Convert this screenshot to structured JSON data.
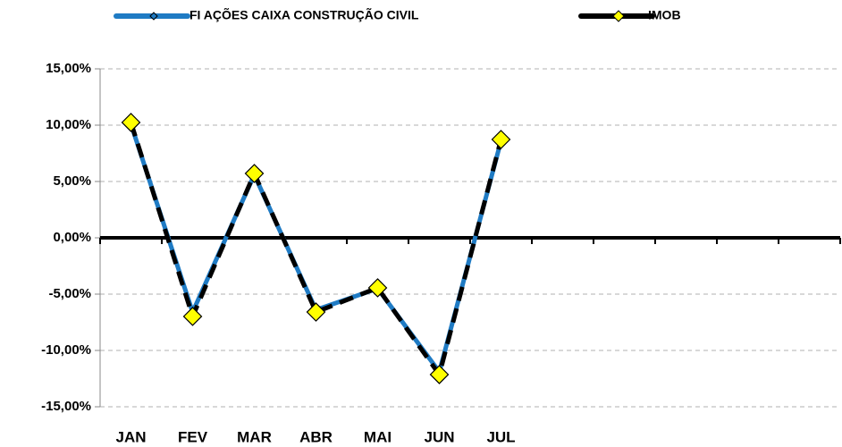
{
  "chart_data": {
    "type": "line",
    "categories": [
      "JAN",
      "FEV",
      "MAR",
      "ABR",
      "MAI",
      "JUN",
      "JUL",
      null,
      null,
      null,
      null,
      null
    ],
    "series": [
      {
        "name": "FI AÇÕES CAIXA CONSTRUÇÃO CIVIL",
        "color": "#1f7bc4",
        "values": [
          10.1,
          -6.6,
          5.6,
          -6.4,
          -4.5,
          -11.9,
          8.6,
          null,
          null,
          null,
          null,
          null
        ]
      },
      {
        "name": "IMOB",
        "color": "#000000",
        "values": [
          10.24,
          -6.98,
          5.71,
          -6.59,
          -4.44,
          -12.14,
          8.73,
          null,
          null,
          null,
          null,
          null
        ]
      }
    ],
    "ylim": [
      -15,
      15
    ],
    "yticks": [
      {
        "value": -15,
        "label": "-15,00%"
      },
      {
        "value": -10,
        "label": "-10,00%"
      },
      {
        "value": -5,
        "label": "-5,00%"
      },
      {
        "value": 0,
        "label": "0,00%"
      },
      {
        "value": 5,
        "label": "5,00%"
      },
      {
        "value": 10,
        "label": "10,00%"
      },
      {
        "value": 15,
        "label": "15,00%"
      }
    ],
    "grid": true,
    "legend": "top"
  }
}
